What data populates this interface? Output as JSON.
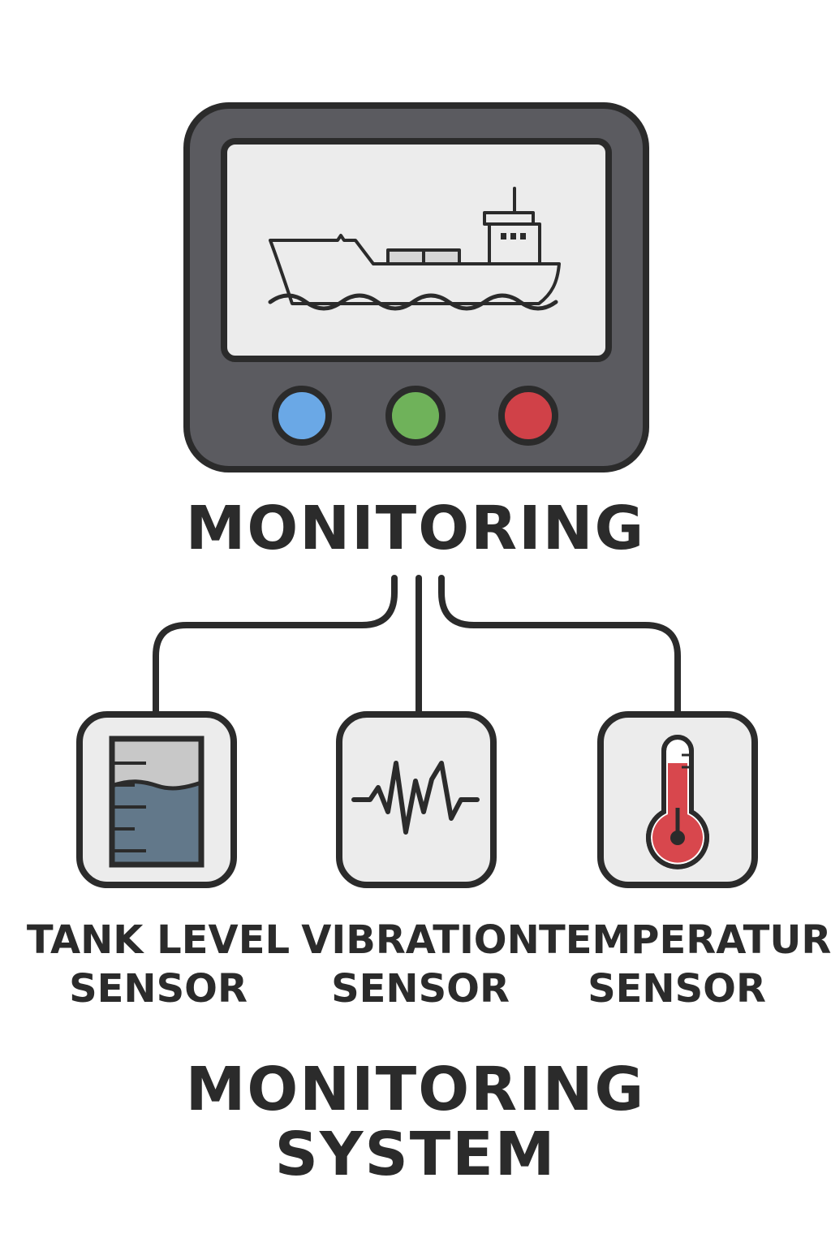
{
  "hub": {
    "title": "MONITORING",
    "screen_icon": "cargo-ship-icon",
    "buttons": [
      {
        "name": "blue-indicator-button",
        "color": "#6aa8e6"
      },
      {
        "name": "green-indicator-button",
        "color": "#6fb25a"
      },
      {
        "name": "red-indicator-button",
        "color": "#d04148"
      }
    ]
  },
  "sensors": [
    {
      "id": "tank-level",
      "icon": "tank-level-icon",
      "line1": "TANK LEVEL",
      "line2": "SENSOR"
    },
    {
      "id": "vibration",
      "icon": "vibration-waveform-icon",
      "line1": "VIBRATION",
      "line2": "SENSOR"
    },
    {
      "id": "temperature",
      "icon": "thermometer-icon",
      "line1": "TEMPERATURE",
      "line2": "SENSOR"
    }
  ],
  "footer": {
    "line1": "MONITORING",
    "line2": "SYSTEM"
  },
  "colors": {
    "outline": "#2b2b2b",
    "device_body": "#5b5b60",
    "panel_fill": "#ececec",
    "tank_liquid": "#62788a",
    "tank_empty": "#c8c8c8",
    "thermometer_red": "#d8474d"
  }
}
